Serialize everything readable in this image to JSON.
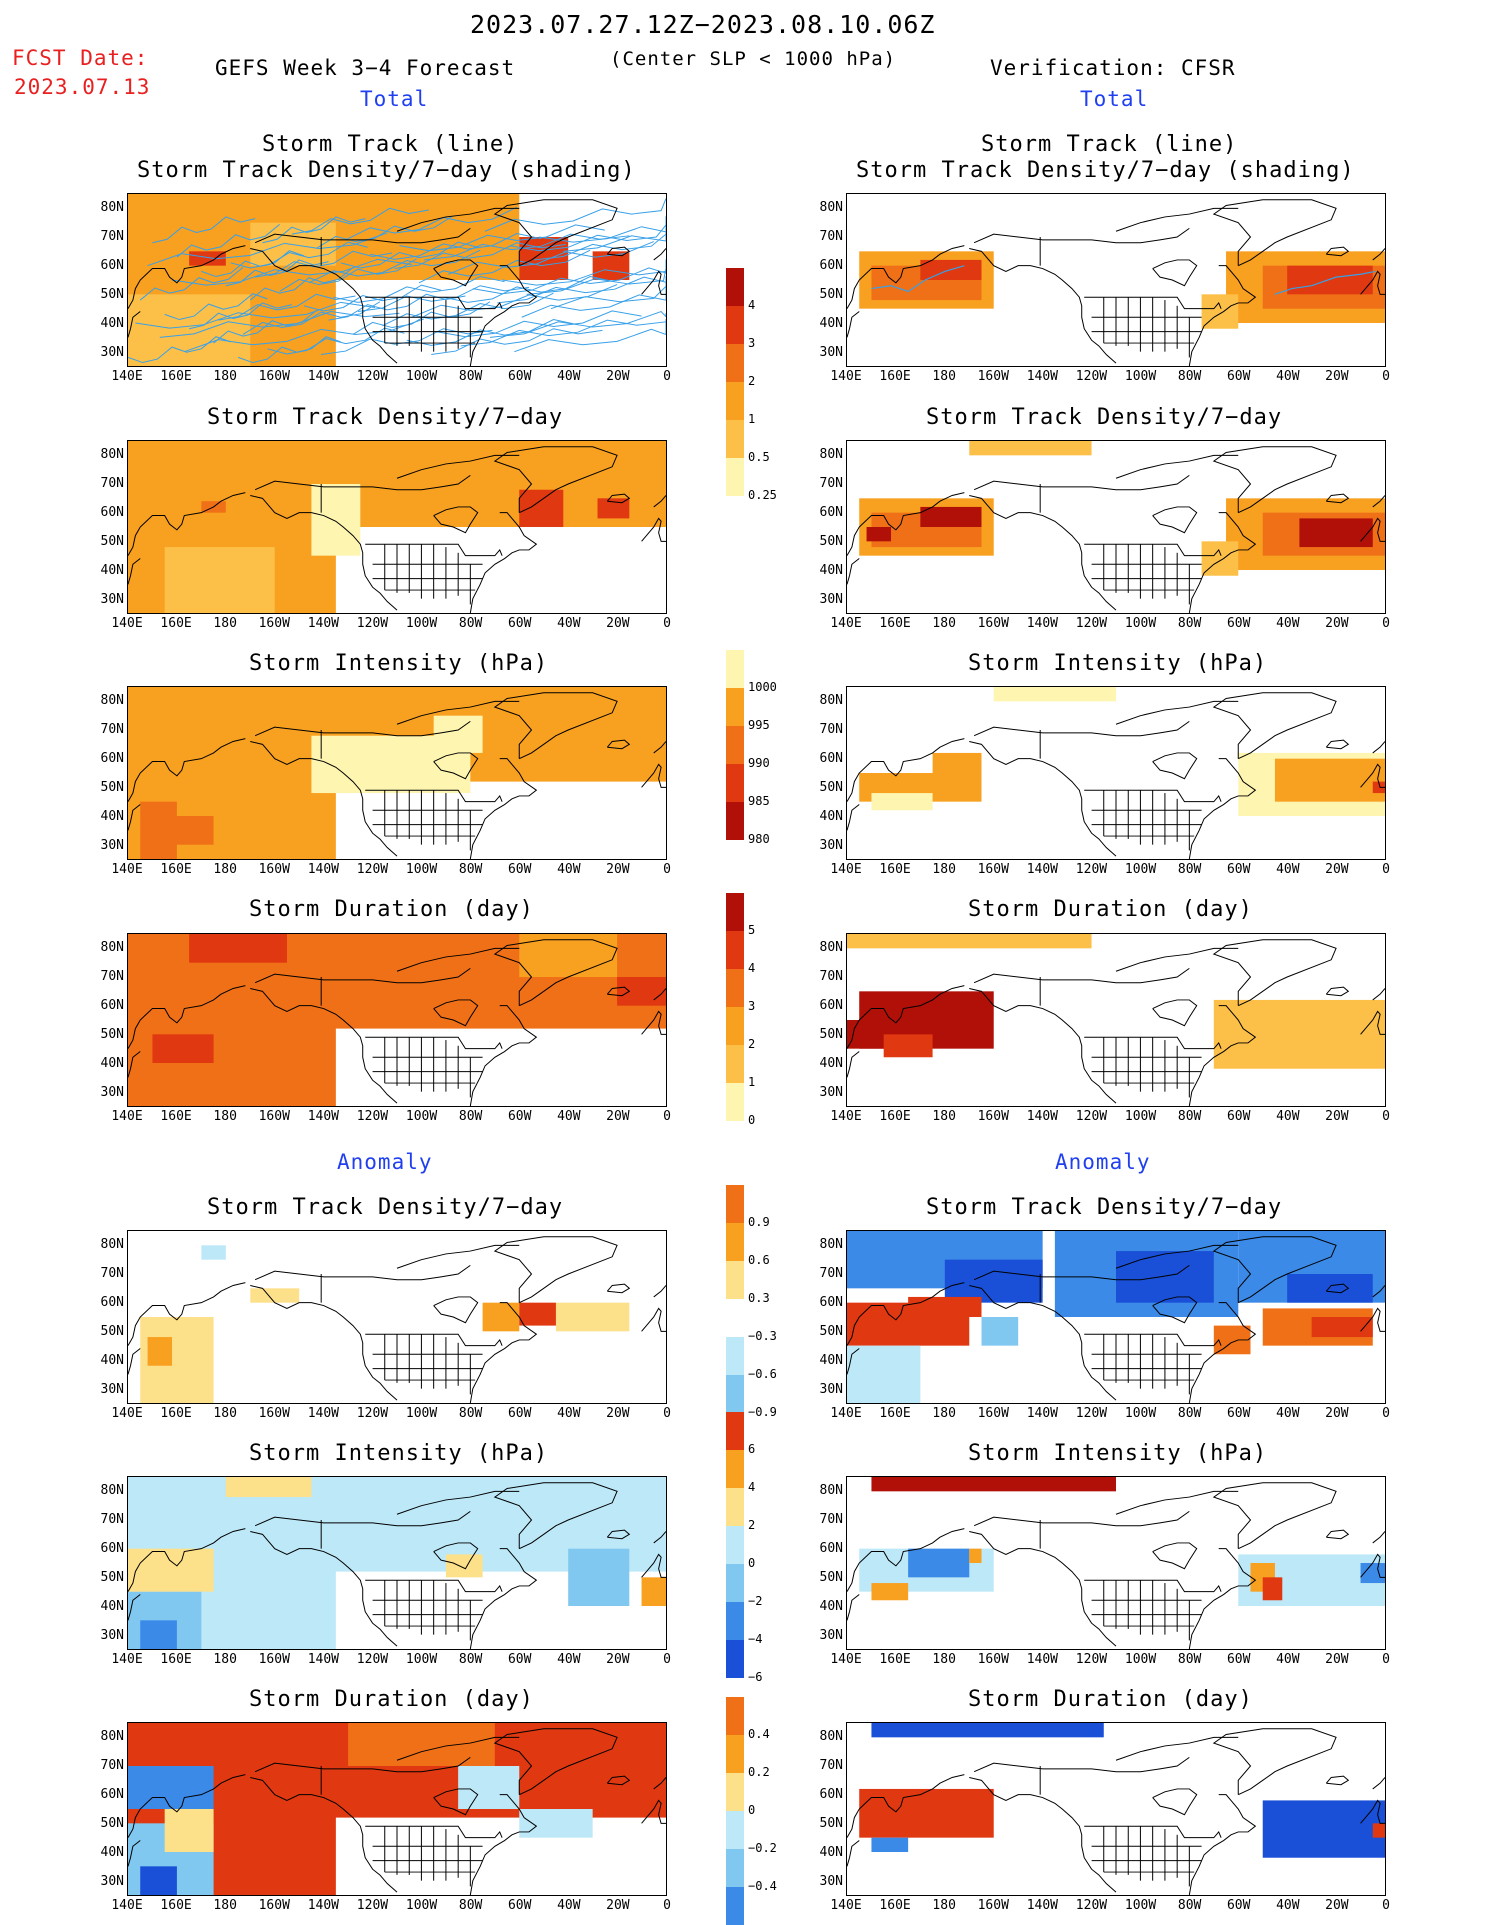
{
  "header": {
    "period": "2023.07.27.12Z−2023.08.10.06Z",
    "fcst_label": "FCST Date:",
    "fcst_date": "2023.07.13",
    "left_title": "GEFS Week 3−4 Forecast",
    "center_note": "(Center SLP < 1000 hPa)",
    "right_title": "Verification: CFSR"
  },
  "sections": {
    "total_left": "Total",
    "total_right": "Total",
    "anomaly_left": "Anomaly",
    "anomaly_right": "Anomaly"
  },
  "panel_titles": {
    "track_line": "Storm Track (line)",
    "track_shading": "Storm Track Density/7−day (shading)",
    "density": "Storm Track Density/7−day",
    "intensity": "Storm Intensity (hPa)",
    "duration": "Storm Duration (day)"
  },
  "axes": {
    "lat": [
      "80N",
      "70N",
      "60N",
      "50N",
      "40N",
      "30N"
    ],
    "lon": [
      "140E",
      "160E",
      "180",
      "160W",
      "140W",
      "120W",
      "100W",
      "80W",
      "60W",
      "40W",
      "20W",
      "0"
    ]
  },
  "colorbars": {
    "density_total": [
      "4",
      "3",
      "2",
      "1",
      "0.5",
      "0.25"
    ],
    "intensity_total": [
      "1000",
      "995",
      "990",
      "985",
      "980"
    ],
    "duration_total": [
      "5",
      "4",
      "3",
      "2",
      "1",
      "0"
    ],
    "density_anom": [
      "0.9",
      "0.6",
      "0.3",
      "−0.3",
      "−0.6",
      "−0.9"
    ],
    "intensity_anom": [
      "6",
      "4",
      "2",
      "0",
      "−2",
      "−4",
      "−6"
    ],
    "duration_anom": [
      "0.4",
      "0.2",
      "0",
      "−0.2",
      "−0.4"
    ]
  },
  "colors": {
    "pale_yellow": "#fdf5b0",
    "yellow": "#fde08a",
    "light_orange": "#fcc048",
    "orange": "#f8a020",
    "orange_red": "#f07018",
    "red": "#e03810",
    "dark_red": "#b01008",
    "light_blue": "#bde8f8",
    "mid_blue": "#80c8f0",
    "blue": "#3b8ae8",
    "dark_blue": "#1a50d8",
    "track_line": "#38a0e8"
  }
}
